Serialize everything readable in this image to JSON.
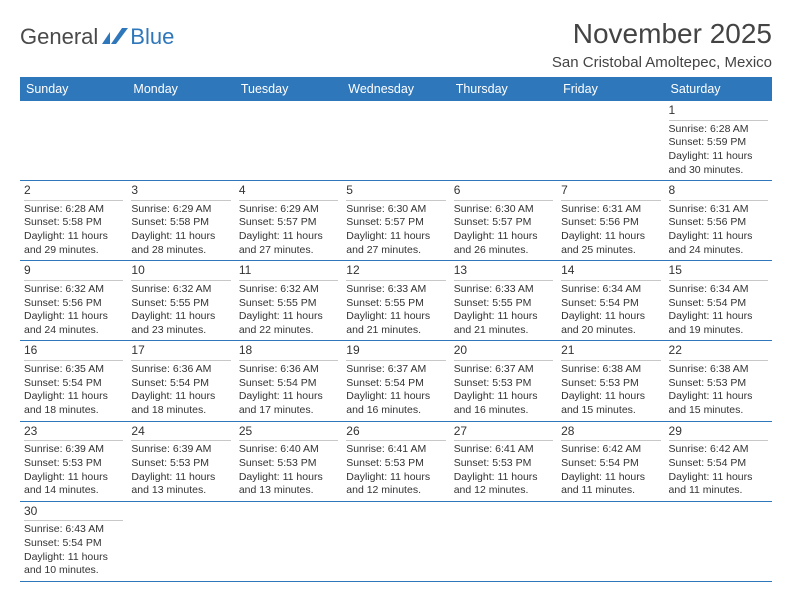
{
  "brand": {
    "part1": "General",
    "part2": "Blue"
  },
  "title": "November 2025",
  "location": "San Cristobal Amoltepec, Mexico",
  "weekdays": [
    "Sunday",
    "Monday",
    "Tuesday",
    "Wednesday",
    "Thursday",
    "Friday",
    "Saturday"
  ],
  "colors": {
    "header_bg": "#2f77bb",
    "header_fg": "#ffffff",
    "rule": "#2f77bb"
  },
  "rows": [
    [
      null,
      null,
      null,
      null,
      null,
      null,
      {
        "n": "1",
        "sr": "Sunrise: 6:28 AM",
        "ss": "Sunset: 5:59 PM",
        "dl1": "Daylight: 11 hours",
        "dl2": "and 30 minutes."
      }
    ],
    [
      {
        "n": "2",
        "sr": "Sunrise: 6:28 AM",
        "ss": "Sunset: 5:58 PM",
        "dl1": "Daylight: 11 hours",
        "dl2": "and 29 minutes."
      },
      {
        "n": "3",
        "sr": "Sunrise: 6:29 AM",
        "ss": "Sunset: 5:58 PM",
        "dl1": "Daylight: 11 hours",
        "dl2": "and 28 minutes."
      },
      {
        "n": "4",
        "sr": "Sunrise: 6:29 AM",
        "ss": "Sunset: 5:57 PM",
        "dl1": "Daylight: 11 hours",
        "dl2": "and 27 minutes."
      },
      {
        "n": "5",
        "sr": "Sunrise: 6:30 AM",
        "ss": "Sunset: 5:57 PM",
        "dl1": "Daylight: 11 hours",
        "dl2": "and 27 minutes."
      },
      {
        "n": "6",
        "sr": "Sunrise: 6:30 AM",
        "ss": "Sunset: 5:57 PM",
        "dl1": "Daylight: 11 hours",
        "dl2": "and 26 minutes."
      },
      {
        "n": "7",
        "sr": "Sunrise: 6:31 AM",
        "ss": "Sunset: 5:56 PM",
        "dl1": "Daylight: 11 hours",
        "dl2": "and 25 minutes."
      },
      {
        "n": "8",
        "sr": "Sunrise: 6:31 AM",
        "ss": "Sunset: 5:56 PM",
        "dl1": "Daylight: 11 hours",
        "dl2": "and 24 minutes."
      }
    ],
    [
      {
        "n": "9",
        "sr": "Sunrise: 6:32 AM",
        "ss": "Sunset: 5:56 PM",
        "dl1": "Daylight: 11 hours",
        "dl2": "and 24 minutes."
      },
      {
        "n": "10",
        "sr": "Sunrise: 6:32 AM",
        "ss": "Sunset: 5:55 PM",
        "dl1": "Daylight: 11 hours",
        "dl2": "and 23 minutes."
      },
      {
        "n": "11",
        "sr": "Sunrise: 6:32 AM",
        "ss": "Sunset: 5:55 PM",
        "dl1": "Daylight: 11 hours",
        "dl2": "and 22 minutes."
      },
      {
        "n": "12",
        "sr": "Sunrise: 6:33 AM",
        "ss": "Sunset: 5:55 PM",
        "dl1": "Daylight: 11 hours",
        "dl2": "and 21 minutes."
      },
      {
        "n": "13",
        "sr": "Sunrise: 6:33 AM",
        "ss": "Sunset: 5:55 PM",
        "dl1": "Daylight: 11 hours",
        "dl2": "and 21 minutes."
      },
      {
        "n": "14",
        "sr": "Sunrise: 6:34 AM",
        "ss": "Sunset: 5:54 PM",
        "dl1": "Daylight: 11 hours",
        "dl2": "and 20 minutes."
      },
      {
        "n": "15",
        "sr": "Sunrise: 6:34 AM",
        "ss": "Sunset: 5:54 PM",
        "dl1": "Daylight: 11 hours",
        "dl2": "and 19 minutes."
      }
    ],
    [
      {
        "n": "16",
        "sr": "Sunrise: 6:35 AM",
        "ss": "Sunset: 5:54 PM",
        "dl1": "Daylight: 11 hours",
        "dl2": "and 18 minutes."
      },
      {
        "n": "17",
        "sr": "Sunrise: 6:36 AM",
        "ss": "Sunset: 5:54 PM",
        "dl1": "Daylight: 11 hours",
        "dl2": "and 18 minutes."
      },
      {
        "n": "18",
        "sr": "Sunrise: 6:36 AM",
        "ss": "Sunset: 5:54 PM",
        "dl1": "Daylight: 11 hours",
        "dl2": "and 17 minutes."
      },
      {
        "n": "19",
        "sr": "Sunrise: 6:37 AM",
        "ss": "Sunset: 5:54 PM",
        "dl1": "Daylight: 11 hours",
        "dl2": "and 16 minutes."
      },
      {
        "n": "20",
        "sr": "Sunrise: 6:37 AM",
        "ss": "Sunset: 5:53 PM",
        "dl1": "Daylight: 11 hours",
        "dl2": "and 16 minutes."
      },
      {
        "n": "21",
        "sr": "Sunrise: 6:38 AM",
        "ss": "Sunset: 5:53 PM",
        "dl1": "Daylight: 11 hours",
        "dl2": "and 15 minutes."
      },
      {
        "n": "22",
        "sr": "Sunrise: 6:38 AM",
        "ss": "Sunset: 5:53 PM",
        "dl1": "Daylight: 11 hours",
        "dl2": "and 15 minutes."
      }
    ],
    [
      {
        "n": "23",
        "sr": "Sunrise: 6:39 AM",
        "ss": "Sunset: 5:53 PM",
        "dl1": "Daylight: 11 hours",
        "dl2": "and 14 minutes."
      },
      {
        "n": "24",
        "sr": "Sunrise: 6:39 AM",
        "ss": "Sunset: 5:53 PM",
        "dl1": "Daylight: 11 hours",
        "dl2": "and 13 minutes."
      },
      {
        "n": "25",
        "sr": "Sunrise: 6:40 AM",
        "ss": "Sunset: 5:53 PM",
        "dl1": "Daylight: 11 hours",
        "dl2": "and 13 minutes."
      },
      {
        "n": "26",
        "sr": "Sunrise: 6:41 AM",
        "ss": "Sunset: 5:53 PM",
        "dl1": "Daylight: 11 hours",
        "dl2": "and 12 minutes."
      },
      {
        "n": "27",
        "sr": "Sunrise: 6:41 AM",
        "ss": "Sunset: 5:53 PM",
        "dl1": "Daylight: 11 hours",
        "dl2": "and 12 minutes."
      },
      {
        "n": "28",
        "sr": "Sunrise: 6:42 AM",
        "ss": "Sunset: 5:54 PM",
        "dl1": "Daylight: 11 hours",
        "dl2": "and 11 minutes."
      },
      {
        "n": "29",
        "sr": "Sunrise: 6:42 AM",
        "ss": "Sunset: 5:54 PM",
        "dl1": "Daylight: 11 hours",
        "dl2": "and 11 minutes."
      }
    ],
    [
      {
        "n": "30",
        "sr": "Sunrise: 6:43 AM",
        "ss": "Sunset: 5:54 PM",
        "dl1": "Daylight: 11 hours",
        "dl2": "and 10 minutes."
      },
      null,
      null,
      null,
      null,
      null,
      null
    ]
  ]
}
